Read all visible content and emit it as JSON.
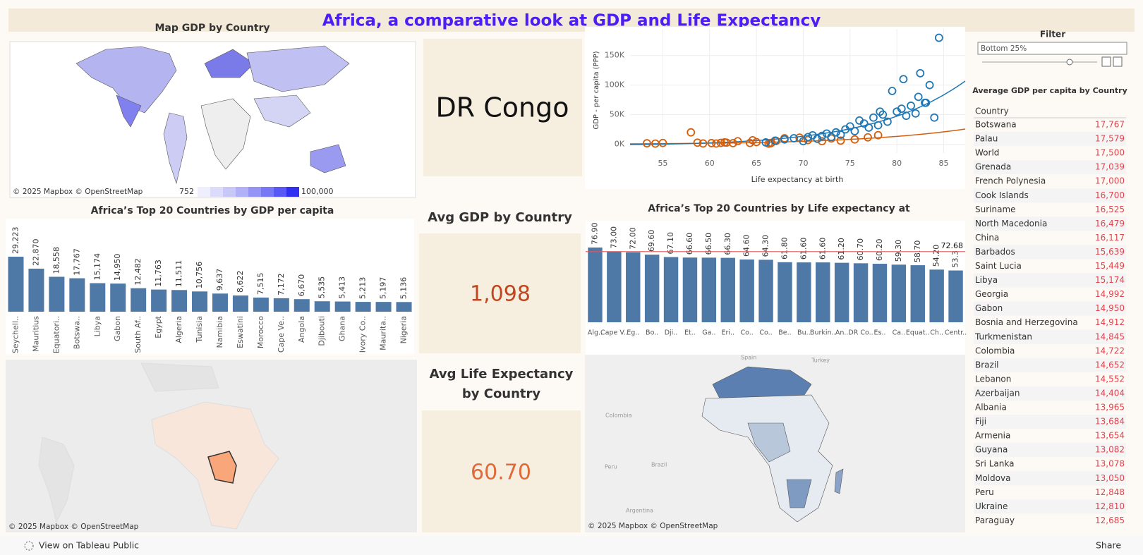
{
  "header": {
    "title": "Africa, a comparative look at GDP and Life Expectancy"
  },
  "map_gdp": {
    "title": "Map GDP by Country",
    "attribution": "© 2025 Mapbox  © OpenStreetMap",
    "legend_min": "752",
    "legend_max": "100,000"
  },
  "selected_country": "DR Congo",
  "kpis": {
    "gdp": {
      "title": "Avg GDP by Country",
      "value": "1,098"
    },
    "life": {
      "title": "Avg Life Expectancy by Country",
      "value": "60.70"
    }
  },
  "filter": {
    "title": "Filter",
    "value": "Bottom 25%"
  },
  "map_bottom_left": {
    "attribution": "© 2025 Mapbox  © OpenStreetMap"
  },
  "map_bottom_right": {
    "attribution": "© 2025 Mapbox  © OpenStreetMap",
    "labels": [
      "Spain",
      "Turkey",
      "Colombia",
      "Brazil",
      "Peru",
      "Argentina"
    ]
  },
  "table": {
    "title": "Average GDP per capita by Country",
    "header": "Country",
    "rows": [
      [
        "Botswana",
        "17,767"
      ],
      [
        "Palau",
        "17,579"
      ],
      [
        "World",
        "17,500"
      ],
      [
        "Grenada",
        "17,039"
      ],
      [
        "French Polynesia",
        "17,000"
      ],
      [
        "Cook Islands",
        "16,700"
      ],
      [
        "Suriname",
        "16,525"
      ],
      [
        "North Macedonia",
        "16,479"
      ],
      [
        "China",
        "16,117"
      ],
      [
        "Barbados",
        "15,639"
      ],
      [
        "Saint Lucia",
        "15,449"
      ],
      [
        "Libya",
        "15,174"
      ],
      [
        "Georgia",
        "14,992"
      ],
      [
        "Gabon",
        "14,950"
      ],
      [
        "Bosnia and Herzegovina",
        "14,912"
      ],
      [
        "Turkmenistan",
        "14,845"
      ],
      [
        "Colombia",
        "14,722"
      ],
      [
        "Brazil",
        "14,652"
      ],
      [
        "Lebanon",
        "14,552"
      ],
      [
        "Azerbaijan",
        "14,404"
      ],
      [
        "Albania",
        "13,965"
      ],
      [
        "Fiji",
        "13,684"
      ],
      [
        "Armenia",
        "13,654"
      ],
      [
        "Guyana",
        "13,082"
      ],
      [
        "Sri Lanka",
        "13,078"
      ],
      [
        "Moldova",
        "13,050"
      ],
      [
        "Peru",
        "12,848"
      ],
      [
        "Ukraine",
        "12,810"
      ],
      [
        "Paraguay",
        "12,685"
      ]
    ]
  },
  "footer": {
    "link": "View on Tableau Public",
    "share": "Share"
  },
  "chart_data": [
    {
      "type": "scatter",
      "x_label": "Life expectancy at birth",
      "y_label": "GDP - per capita (PPP)",
      "xlim": [
        51.5,
        87.3
      ],
      "ylim": [
        -15000,
        195000
      ],
      "xticks": [
        55,
        60,
        65,
        70,
        75,
        80,
        85
      ],
      "yticks": [
        {
          "value": 0,
          "label": "0K"
        },
        {
          "value": 50000,
          "label": "50K"
        },
        {
          "value": 100000,
          "label": "100K"
        },
        {
          "value": 150000,
          "label": "150K"
        }
      ],
      "grid": true,
      "series": [
        {
          "color": "#d35f0e",
          "x": [
            53.3,
            54.2,
            55,
            58,
            58.7,
            59.3,
            60.2,
            60.7,
            61.2,
            61.6,
            61.8,
            62.5,
            63,
            64.3,
            64.6,
            65,
            66.3,
            66.5,
            66.6,
            67.1,
            68,
            69.6,
            70.5,
            72,
            73,
            74,
            75.5,
            76.9,
            78
          ],
          "values": [
            1500,
            1000,
            2000,
            20000,
            2500,
            1200,
            1800,
            1098,
            2200,
            3000,
            2600,
            1700,
            5000,
            2000,
            6670,
            3500,
            800,
            1400,
            2300,
            5535,
            10000,
            11000,
            7000,
            5000,
            9637,
            6000,
            8000,
            11511,
            15174
          ]
        },
        {
          "color": "#1f77b4",
          "x": [
            66,
            67,
            68,
            69,
            70,
            70.5,
            71,
            71.5,
            72,
            72.5,
            73,
            73.5,
            74,
            74.5,
            75,
            75.5,
            76,
            76.5,
            77,
            77.5,
            78,
            78.5,
            79,
            79.5,
            80,
            80.5,
            81,
            81.5,
            82,
            82.5,
            83,
            83.5,
            84,
            84.5,
            80.7,
            82.3,
            83.1,
            78.2
          ],
          "values": [
            3000,
            6000,
            8000,
            10000,
            5000,
            12000,
            15000,
            9000,
            14000,
            18000,
            12000,
            20000,
            16000,
            25000,
            30000,
            22000,
            40000,
            35000,
            28000,
            45000,
            32000,
            50000,
            38000,
            90000,
            55000,
            60000,
            48000,
            65000,
            52000,
            120000,
            70000,
            100000,
            45000,
            180000,
            110000,
            80000,
            70000,
            55000
          ]
        }
      ]
    },
    {
      "type": "bar",
      "title": "Africa’s Top 20 Countries by GDP per capita",
      "color": "#4e79a7",
      "categories": [
        "Seychell..",
        "Mauritius",
        "Equatori..",
        "Botswa..",
        "Libya",
        "Gabon",
        "South Af..",
        "Egypt",
        "Algeria",
        "Tunisia",
        "Namibia",
        "Eswatini",
        "Morocco",
        "Cape Ve..",
        "Angola",
        "Djibouti",
        "Ghana",
        "Ivory Co..",
        "Maurita..",
        "Nigeria"
      ],
      "values": [
        29223,
        22870,
        18558,
        17767,
        15174,
        14950,
        12482,
        11763,
        11511,
        10756,
        9637,
        8622,
        7515,
        7172,
        6670,
        5535,
        5413,
        5213,
        5197,
        5136
      ],
      "value_labels": [
        "29,223",
        "22,870",
        "18,558",
        "17,767",
        "15,174",
        "14,950",
        "12,482",
        "11,763",
        "11,511",
        "10,756",
        "9,637",
        "8,622",
        "7,515",
        "7,172",
        "6,670",
        "5,535",
        "5,413",
        "5,213",
        "5,197",
        "5,136"
      ]
    },
    {
      "type": "bar",
      "title": "Africa’s Top 20 Countries by Life expectancy at",
      "color": "#4e79a7",
      "categories": [
        "Alg..",
        "Cape V..",
        "Eg..",
        "Bo..",
        "Dji..",
        "Et..",
        "Ga..",
        "Eri..",
        "Co..",
        "Co..",
        "Be..",
        "Bu..",
        "Burkin..",
        "An..",
        "DR Co..",
        "Es..",
        "Ca..",
        "Equat..",
        "Ch..",
        "Centr.."
      ],
      "values": [
        76.9,
        73,
        72,
        69.6,
        67.1,
        66.6,
        66.5,
        66.3,
        64.6,
        64.3,
        61.8,
        61.6,
        61.6,
        61.2,
        60.7,
        60.2,
        59.3,
        58.7,
        54.2,
        53.3
      ],
      "value_labels": [
        "76.90",
        "73.00",
        "72.00",
        "69.60",
        "67.10",
        "66.60",
        "66.50",
        "66.30",
        "64.60",
        "64.30",
        "61.80",
        "61.60",
        "61.60",
        "61.20",
        "60.70",
        "60.20",
        "59.30",
        "58.70",
        "54.20",
        "53.3"
      ],
      "reference_line": 72.68,
      "reference_color": "#e15759"
    }
  ]
}
